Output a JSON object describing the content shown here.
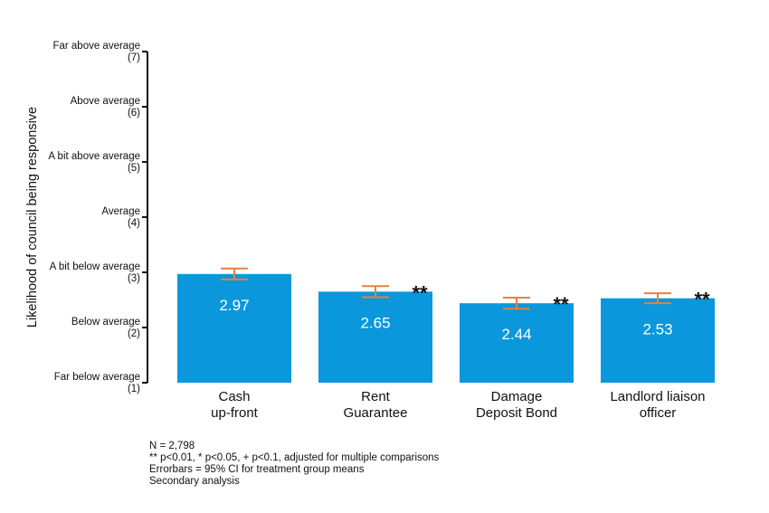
{
  "chart_data": {
    "type": "bar",
    "ylabel": "Likelihood of council being responsive",
    "ylim": [
      1,
      7
    ],
    "yticks": [
      {
        "value": 7,
        "label": "Far above average",
        "sub": "(7)"
      },
      {
        "value": 6,
        "label": "Above average",
        "sub": "(6)"
      },
      {
        "value": 5,
        "label": "A bit above average",
        "sub": "(5)"
      },
      {
        "value": 4,
        "label": "Average",
        "sub": "(4)"
      },
      {
        "value": 3,
        "label": "A bit below average",
        "sub": "(3)"
      },
      {
        "value": 2,
        "label": "Below average",
        "sub": "(2)"
      },
      {
        "value": 1,
        "label": "Far below average",
        "sub": "(1)"
      }
    ],
    "categories": [
      [
        "Cash",
        "up-front"
      ],
      [
        "Rent",
        "Guarantee"
      ],
      [
        "Damage",
        "Deposit Bond"
      ],
      [
        "Landlord liaison",
        "officer"
      ]
    ],
    "values": [
      2.97,
      2.65,
      2.44,
      2.53
    ],
    "value_labels": [
      "2.97",
      "2.65",
      "2.44",
      "2.53"
    ],
    "ci": [
      [
        2.87,
        3.07
      ],
      [
        2.55,
        2.75
      ],
      [
        2.34,
        2.54
      ],
      [
        2.44,
        2.62
      ]
    ],
    "significance": [
      "",
      "**",
      "**",
      "**"
    ],
    "bar_color": "#0b97dc",
    "errorbar_color": "#e8823a",
    "grid": false,
    "legend": "none"
  },
  "notes": [
    "N = 2,798",
    "** p<0.01, * p<0.05, + p<0.1, adjusted for multiple comparisons",
    "Errorbars = 95% CI for treatment group means",
    "Secondary analysis"
  ]
}
